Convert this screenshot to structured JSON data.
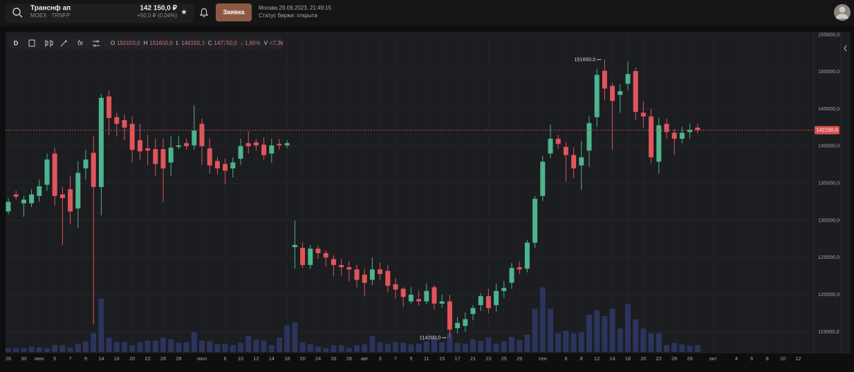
{
  "header": {
    "ticker": "Транснф ап",
    "exchange": "MOEX · TRNFP",
    "price": "142 150,0 ₽",
    "change": "+50,0 ₽ (0,04%)",
    "order_button": "Заявка",
    "datetime": "Москва 29.09.2023, 21:49:15",
    "status": "Статус биржи: открыта"
  },
  "toolbar": {
    "period": "D",
    "legend": [
      {
        "label": "O",
        "value": "150150,0"
      },
      {
        "label": "H",
        "value": "151650,0"
      },
      {
        "label": "L",
        "value": "146150,0"
      },
      {
        "label": "C",
        "value": "147750,0"
      }
    ],
    "change": "↓ 1,60%",
    "volume_label": "V",
    "volume": "47,3k"
  },
  "chart_data": {
    "type": "candlestick",
    "categories": [
      "26",
      null,
      "30",
      null,
      "июн",
      null,
      "5",
      null,
      "7",
      null,
      "9",
      null,
      "14",
      null,
      "16",
      null,
      "20",
      null,
      "22",
      null,
      "26",
      null,
      "28",
      null,
      null,
      "июл",
      null,
      null,
      "6",
      null,
      "10",
      null,
      "12",
      null,
      "14",
      null,
      "18",
      null,
      "20",
      null,
      "24",
      null,
      "26",
      null,
      "28",
      null,
      "авг",
      null,
      "3",
      null,
      "7",
      null,
      "9",
      null,
      "11",
      null,
      "15",
      null,
      "17",
      null,
      "21",
      null,
      "23",
      null,
      "25",
      null,
      "29",
      null,
      null,
      "сен",
      null,
      null,
      "6",
      null,
      "8",
      null,
      "12",
      null,
      "14",
      null,
      "18",
      null,
      "20",
      null,
      "22",
      null,
      "26",
      null,
      "28",
      null,
      null,
      "окт",
      null,
      null,
      "4",
      null,
      "6",
      null,
      "8",
      null,
      "10",
      null,
      "12"
    ],
    "open": [
      131200,
      133500,
      132300,
      132300,
      133300,
      134800,
      139000,
      133500,
      134200,
      131600,
      137000,
      139100,
      134500,
      146700,
      143900,
      143500,
      143000,
      140800,
      139700,
      139600,
      139600,
      137800,
      139900,
      140400,
      140100,
      143000,
      139700,
      138000,
      137600,
      137000,
      138300,
      140400,
      140500,
      140200,
      139000,
      140300,
      140100,
      126400,
      126300,
      124000,
      126200,
      125600,
      124800,
      124000,
      123700,
      123400,
      122700,
      122000,
      123400,
      123200,
      121400,
      120800,
      119100,
      119400,
      119100,
      121000,
      118800,
      119100,
      115500,
      115800,
      117400,
      118600,
      119800,
      118600,
      120500,
      121600,
      123700,
      123500,
      127000,
      133300,
      139000,
      141000,
      139900,
      138800,
      137400,
      139400,
      143900,
      150150,
      148100,
      146900,
      148400,
      150100,
      144500,
      144000,
      137900,
      143000,
      141800,
      141000,
      141900,
      142500,
      null,
      null,
      null,
      null,
      null,
      null,
      null,
      null,
      null,
      null,
      null,
      null,
      null
    ],
    "high": [
      133000,
      134000,
      133300,
      134200,
      135500,
      139000,
      139800,
      134500,
      136000,
      138000,
      139500,
      141300,
      147000,
      147500,
      144500,
      144300,
      144000,
      143000,
      141500,
      141000,
      141000,
      141300,
      141300,
      141000,
      145500,
      143700,
      141000,
      138500,
      138300,
      138500,
      141000,
      142000,
      141000,
      141200,
      141000,
      141000,
      140800,
      130000,
      127000,
      126700,
      126600,
      126000,
      125300,
      124800,
      124500,
      124000,
      123500,
      125000,
      124300,
      124000,
      122200,
      121000,
      121000,
      120500,
      121500,
      121300,
      120000,
      120000,
      117000,
      117600,
      118600,
      120200,
      120800,
      121500,
      121800,
      124300,
      124500,
      127400,
      133300,
      138700,
      142900,
      141500,
      140500,
      139800,
      140700,
      144000,
      150400,
      151650,
      148500,
      148300,
      151400,
      150600,
      146000,
      145000,
      143800,
      143700,
      142300,
      142600,
      143000,
      143000,
      null,
      null,
      null,
      null,
      null,
      null,
      null,
      null,
      null,
      null,
      null,
      null,
      null
    ],
    "low": [
      130800,
      132800,
      130500,
      131800,
      132500,
      134000,
      132000,
      126700,
      129500,
      129000,
      135500,
      116000,
      130700,
      141500,
      141300,
      140800,
      137800,
      138200,
      137500,
      136000,
      132500,
      136000,
      139600,
      139500,
      139500,
      137500,
      136300,
      136200,
      134900,
      135800,
      137500,
      139000,
      139400,
      138200,
      137800,
      139500,
      139700,
      123500,
      123600,
      123500,
      124800,
      123800,
      122500,
      122600,
      121800,
      121000,
      119800,
      121300,
      122000,
      120300,
      119500,
      118300,
      118800,
      118500,
      118700,
      118000,
      118300,
      114200,
      114800,
      115000,
      116600,
      117800,
      117500,
      117700,
      119600,
      120800,
      122800,
      123000,
      126300,
      132600,
      138400,
      139600,
      135200,
      135700,
      134100,
      137200,
      142600,
      146150,
      139500,
      144500,
      147500,
      143500,
      142500,
      137700,
      136300,
      141000,
      138800,
      140400,
      141000,
      141700,
      null,
      null,
      null,
      null,
      null,
      null,
      null,
      null,
      null,
      null,
      null,
      null,
      null
    ],
    "close": [
      132500,
      133200,
      132800,
      133500,
      134600,
      138200,
      133300,
      133000,
      131200,
      136400,
      138200,
      134500,
      146500,
      143800,
      143000,
      142500,
      139500,
      139300,
      139400,
      137600,
      137000,
      139800,
      140100,
      140000,
      142100,
      140000,
      137400,
      137000,
      136700,
      137800,
      140000,
      140000,
      140100,
      138800,
      140100,
      140100,
      140400,
      126700,
      124000,
      126200,
      125600,
      125000,
      124000,
      123700,
      123400,
      122000,
      121600,
      123400,
      122800,
      121200,
      120700,
      119700,
      120000,
      119100,
      120500,
      118800,
      119100,
      115300,
      116200,
      116700,
      118200,
      119800,
      118200,
      120500,
      120900,
      123600,
      123400,
      127000,
      132900,
      137900,
      141000,
      140300,
      138800,
      137000,
      138500,
      143100,
      149600,
      147750,
      146100,
      147400,
      149700,
      144600,
      144000,
      138500,
      142800,
      141900,
      141000,
      141800,
      142200,
      142150,
      null,
      null,
      null,
      null,
      null,
      null,
      null,
      null,
      null,
      null,
      null,
      null,
      null
    ],
    "volume": [
      5,
      5,
      5,
      7,
      6,
      5,
      9,
      9,
      6,
      11,
      14,
      25,
      70,
      19,
      13,
      13,
      9,
      13,
      15,
      15,
      19,
      17,
      12,
      13,
      26,
      15,
      14,
      10,
      11,
      9,
      12,
      21,
      16,
      15,
      9,
      19,
      35,
      39,
      13,
      10,
      7,
      5,
      9,
      9,
      5,
      9,
      10,
      21,
      13,
      11,
      13,
      12,
      10,
      11,
      14,
      19,
      13,
      25,
      12,
      11,
      17,
      15,
      19,
      11,
      14,
      20,
      16,
      23,
      57,
      85,
      57,
      25,
      28,
      25,
      26,
      49,
      55,
      47.3,
      57,
      31,
      63,
      43,
      31,
      25,
      25,
      9,
      12,
      10,
      8,
      9,
      null,
      null,
      null,
      null,
      null,
      null,
      null,
      null,
      null,
      null,
      null,
      null,
      null
    ],
    "ylim": [
      112100,
      155400
    ],
    "yticks": [
      {
        "value": 115000,
        "label": "115000,0"
      },
      {
        "value": 120000,
        "label": "120000,0"
      },
      {
        "value": 125000,
        "label": "125000,0"
      },
      {
        "value": 130000,
        "label": "130000,0"
      },
      {
        "value": 135000,
        "label": "135000,0"
      },
      {
        "value": 140000,
        "label": "140000,0"
      },
      {
        "value": 145000,
        "label": "145000,0"
      },
      {
        "value": 150000,
        "label": "150000,0"
      },
      {
        "value": 155000,
        "label": "155000,0"
      }
    ],
    "last_price": {
      "value": 142150,
      "label": "142150,0"
    },
    "max_label": "151650,0",
    "min_label": "114200,0",
    "up_color": "#4db48d",
    "down_color": "#e0555b",
    "volume_color": "#2d3763",
    "grid": true
  }
}
